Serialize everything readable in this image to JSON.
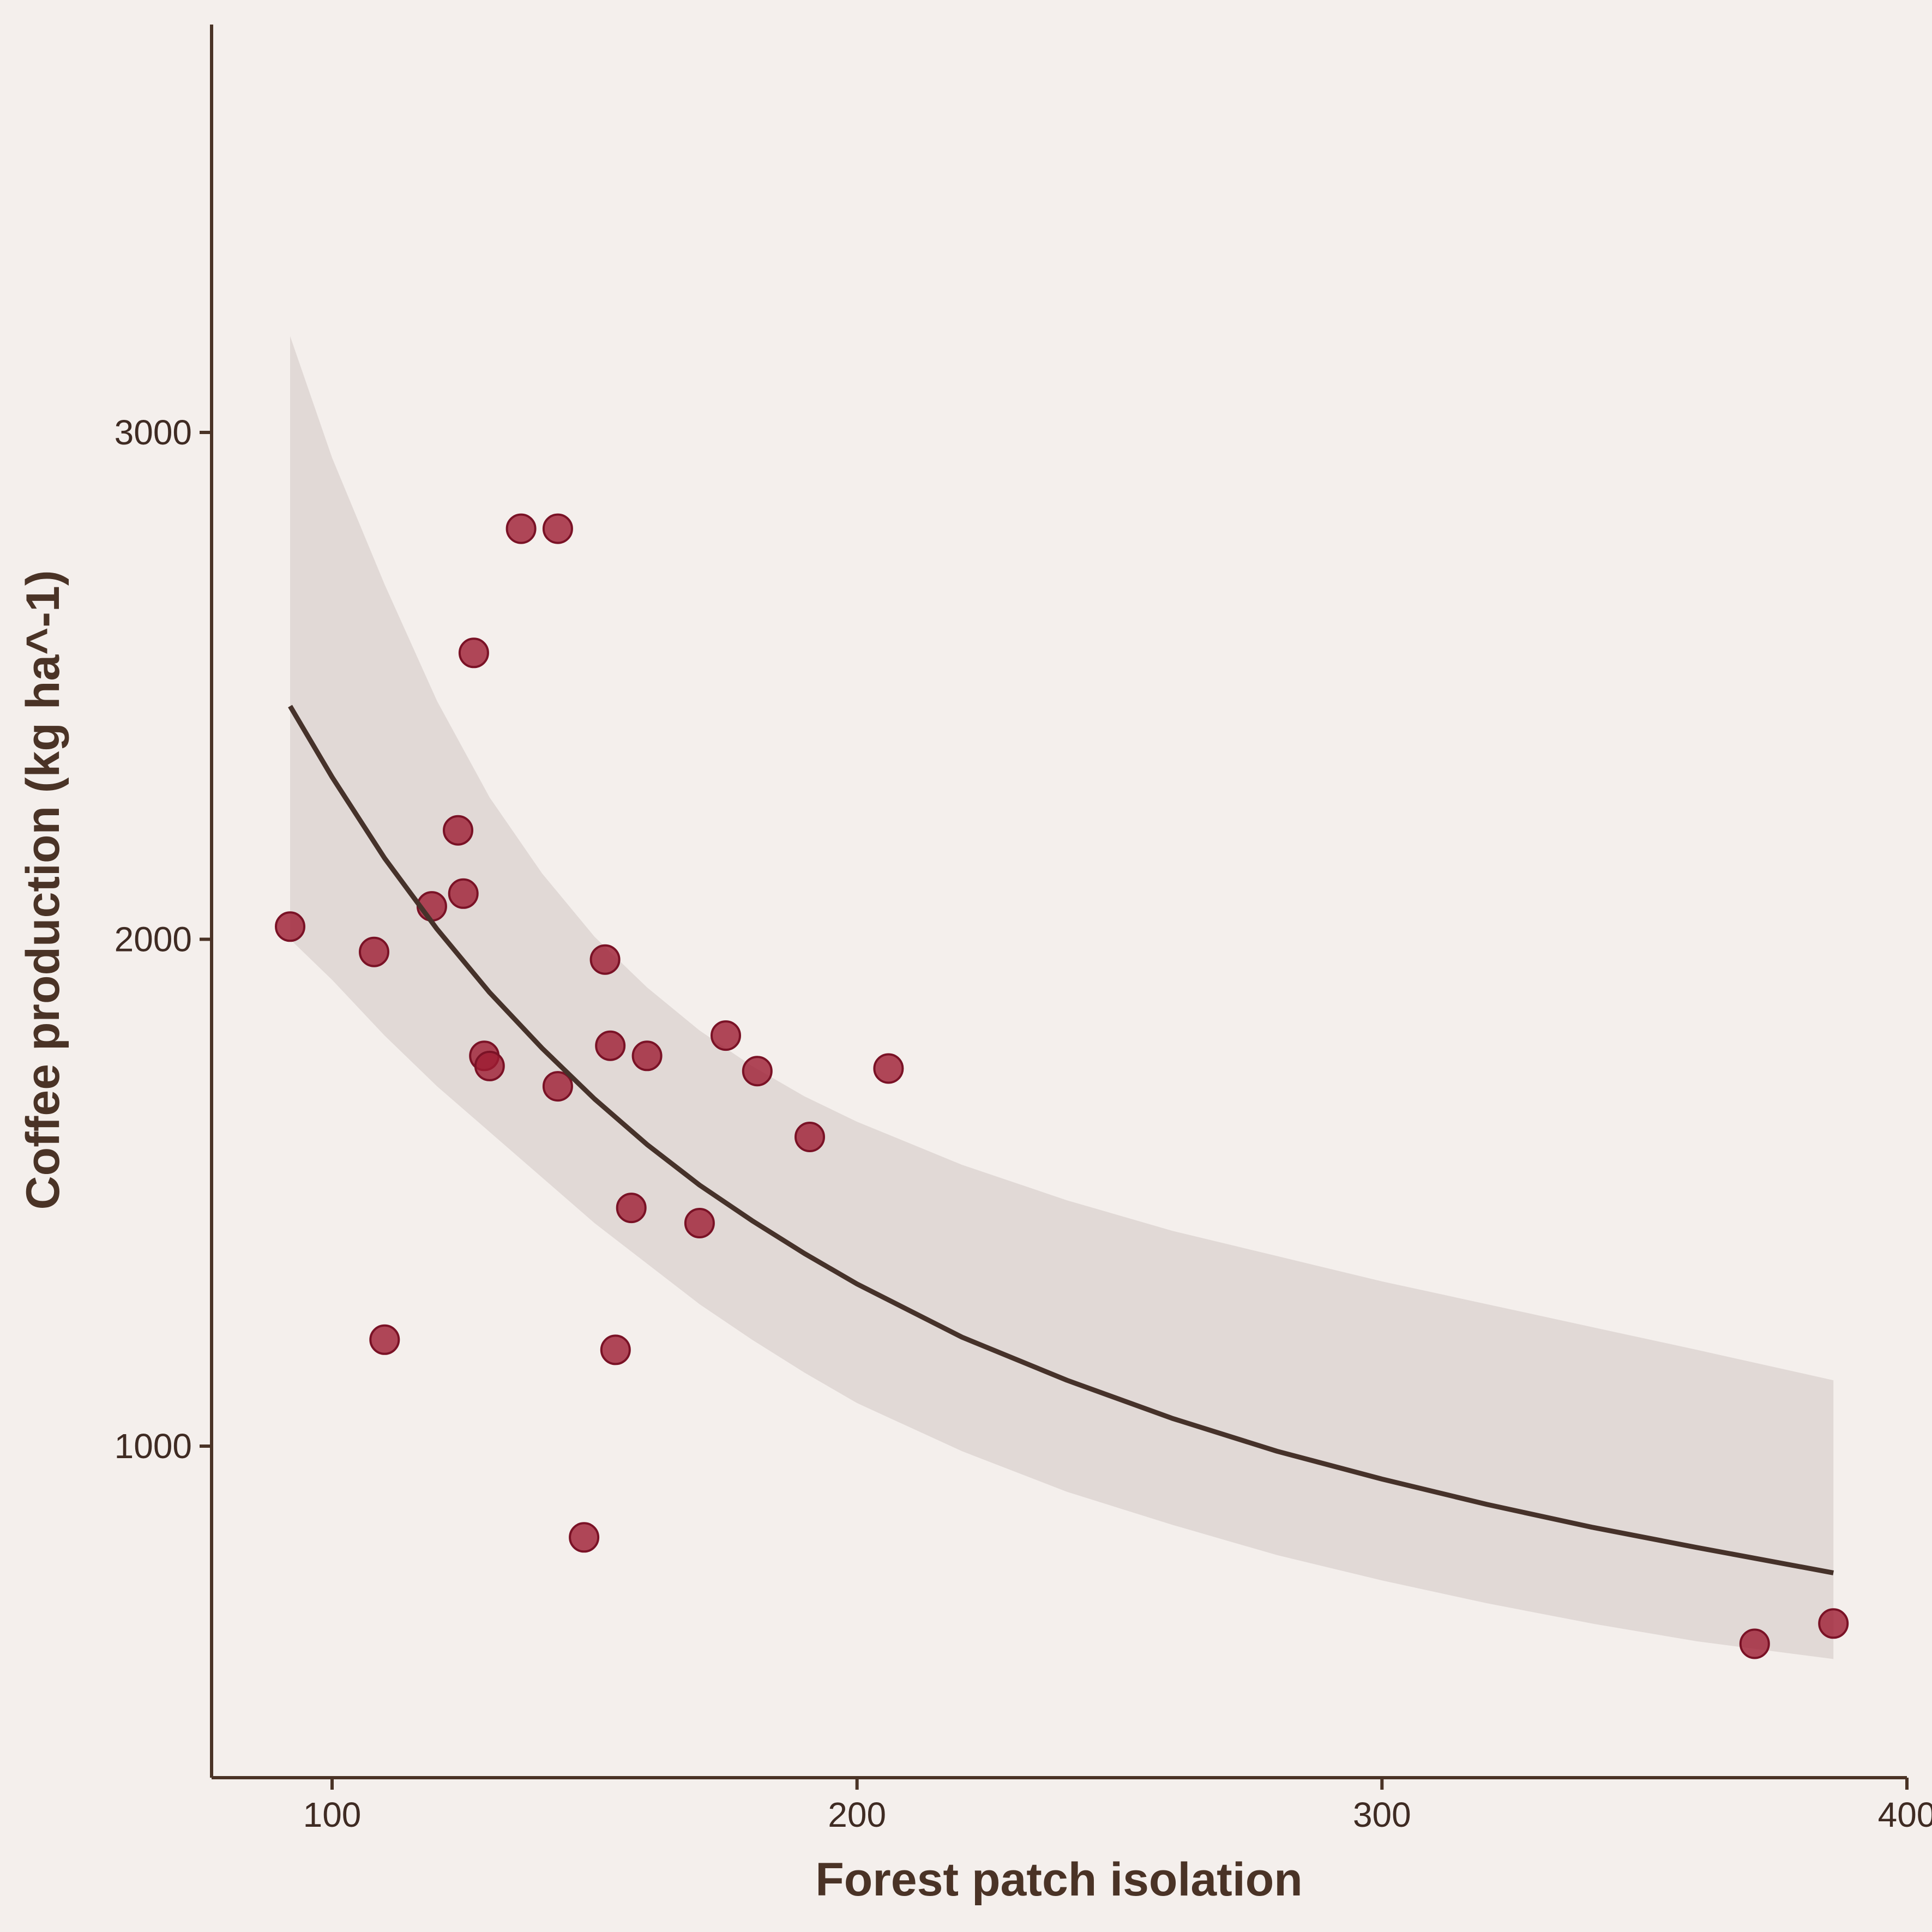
{
  "colors": {
    "background": "#f4efec",
    "axis": "#4a3326",
    "text": "#3f2b23",
    "point_fill": "#9e1b32",
    "point_stroke": "#7a1226",
    "fit_line": "#46322a",
    "ribbon": "#ddd5d2"
  },
  "chart_data": {
    "type": "scatter",
    "title": "",
    "xlabel": "Forest patch isolation",
    "ylabel": "Coffee production (kg ha^-1)",
    "xlim": [
      77,
      400
    ],
    "ylim": [
      350,
      3800
    ],
    "x_ticks": [
      100,
      200,
      300,
      400
    ],
    "x_tick_labels": [
      "100",
      "200",
      "300",
      "400"
    ],
    "y_ticks": [
      1000,
      2000,
      3000
    ],
    "y_tick_labels": [
      "1000",
      "2000",
      "3000"
    ],
    "grid": false,
    "legend": "none",
    "points": {
      "x": [
        92,
        108,
        110,
        119,
        124,
        125,
        127,
        129,
        130,
        136,
        143,
        143,
        148,
        152,
        153,
        154,
        157,
        160,
        170,
        175,
        181,
        191,
        206,
        371,
        386
      ],
      "y": [
        2025,
        1975,
        1210,
        2065,
        2215,
        2090,
        2565,
        1770,
        1750,
        2810,
        1710,
        2810,
        820,
        1960,
        1790,
        1190,
        1470,
        1770,
        1440,
        1810,
        1740,
        1610,
        1745,
        610,
        650
      ]
    },
    "fit": {
      "x": [
        92,
        100,
        110,
        120,
        130,
        140,
        150,
        160,
        170,
        180,
        190,
        200,
        220,
        240,
        260,
        280,
        300,
        320,
        340,
        360,
        386
      ],
      "y": [
        2460,
        2320,
        2160,
        2020,
        1895,
        1785,
        1685,
        1595,
        1515,
        1445,
        1380,
        1320,
        1215,
        1130,
        1055,
        990,
        935,
        885,
        840,
        800,
        750
      ],
      "ci_lower": [
        2000,
        1920,
        1810,
        1710,
        1620,
        1530,
        1440,
        1360,
        1280,
        1210,
        1145,
        1085,
        990,
        910,
        845,
        785,
        735,
        690,
        650,
        615,
        580
      ],
      "ci_upper": [
        3190,
        2950,
        2700,
        2470,
        2280,
        2130,
        2005,
        1905,
        1820,
        1750,
        1690,
        1640,
        1555,
        1485,
        1425,
        1375,
        1325,
        1280,
        1235,
        1190,
        1130
      ]
    }
  }
}
